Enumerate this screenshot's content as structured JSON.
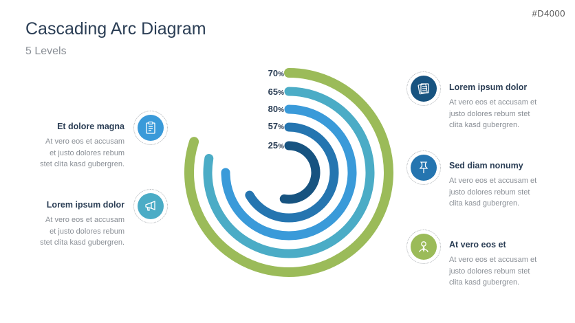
{
  "slide_id": "#D4000",
  "title": "Cascading Arc Diagram",
  "subtitle": "5 Levels",
  "levels": [
    {
      "value": "70",
      "unit": "%",
      "color": "#9bbb59"
    },
    {
      "value": "65",
      "unit": "%",
      "color": "#4bacc6"
    },
    {
      "value": "80",
      "unit": "%",
      "color": "#3a9ad9"
    },
    {
      "value": "57",
      "unit": "%",
      "color": "#2575b0"
    },
    {
      "value": "25",
      "unit": "%",
      "color": "#175380"
    }
  ],
  "items": [
    {
      "heading": "Et dolore magna",
      "text": "At vero eos et accusam et justo dolores rebum stet clita kasd gubergren.",
      "icon": "clipboard-icon",
      "color": "#3a9ad9"
    },
    {
      "heading": "Lorem ipsum dolor",
      "text": "At vero eos et accusam et justo dolores rebum stet clita kasd gubergren.",
      "icon": "megaphone-icon",
      "color": "#4bacc6"
    },
    {
      "heading": "Lorem ipsum dolor",
      "text": "At vero eos et accusam et justo dolores rebum stet clita kasd gubergren.",
      "icon": "notes-icon",
      "color": "#175380"
    },
    {
      "heading": "Sed diam nonumy",
      "text": "At vero eos et accusam et justo dolores rebum stet clita kasd gubergren.",
      "icon": "pushpin-icon",
      "color": "#2575b0"
    },
    {
      "heading": "At vero eos et",
      "text": "At vero eos et accusam et justo dolores rebum stet clita kasd gubergren.",
      "icon": "person-icon",
      "color": "#9bbb59"
    }
  ]
}
